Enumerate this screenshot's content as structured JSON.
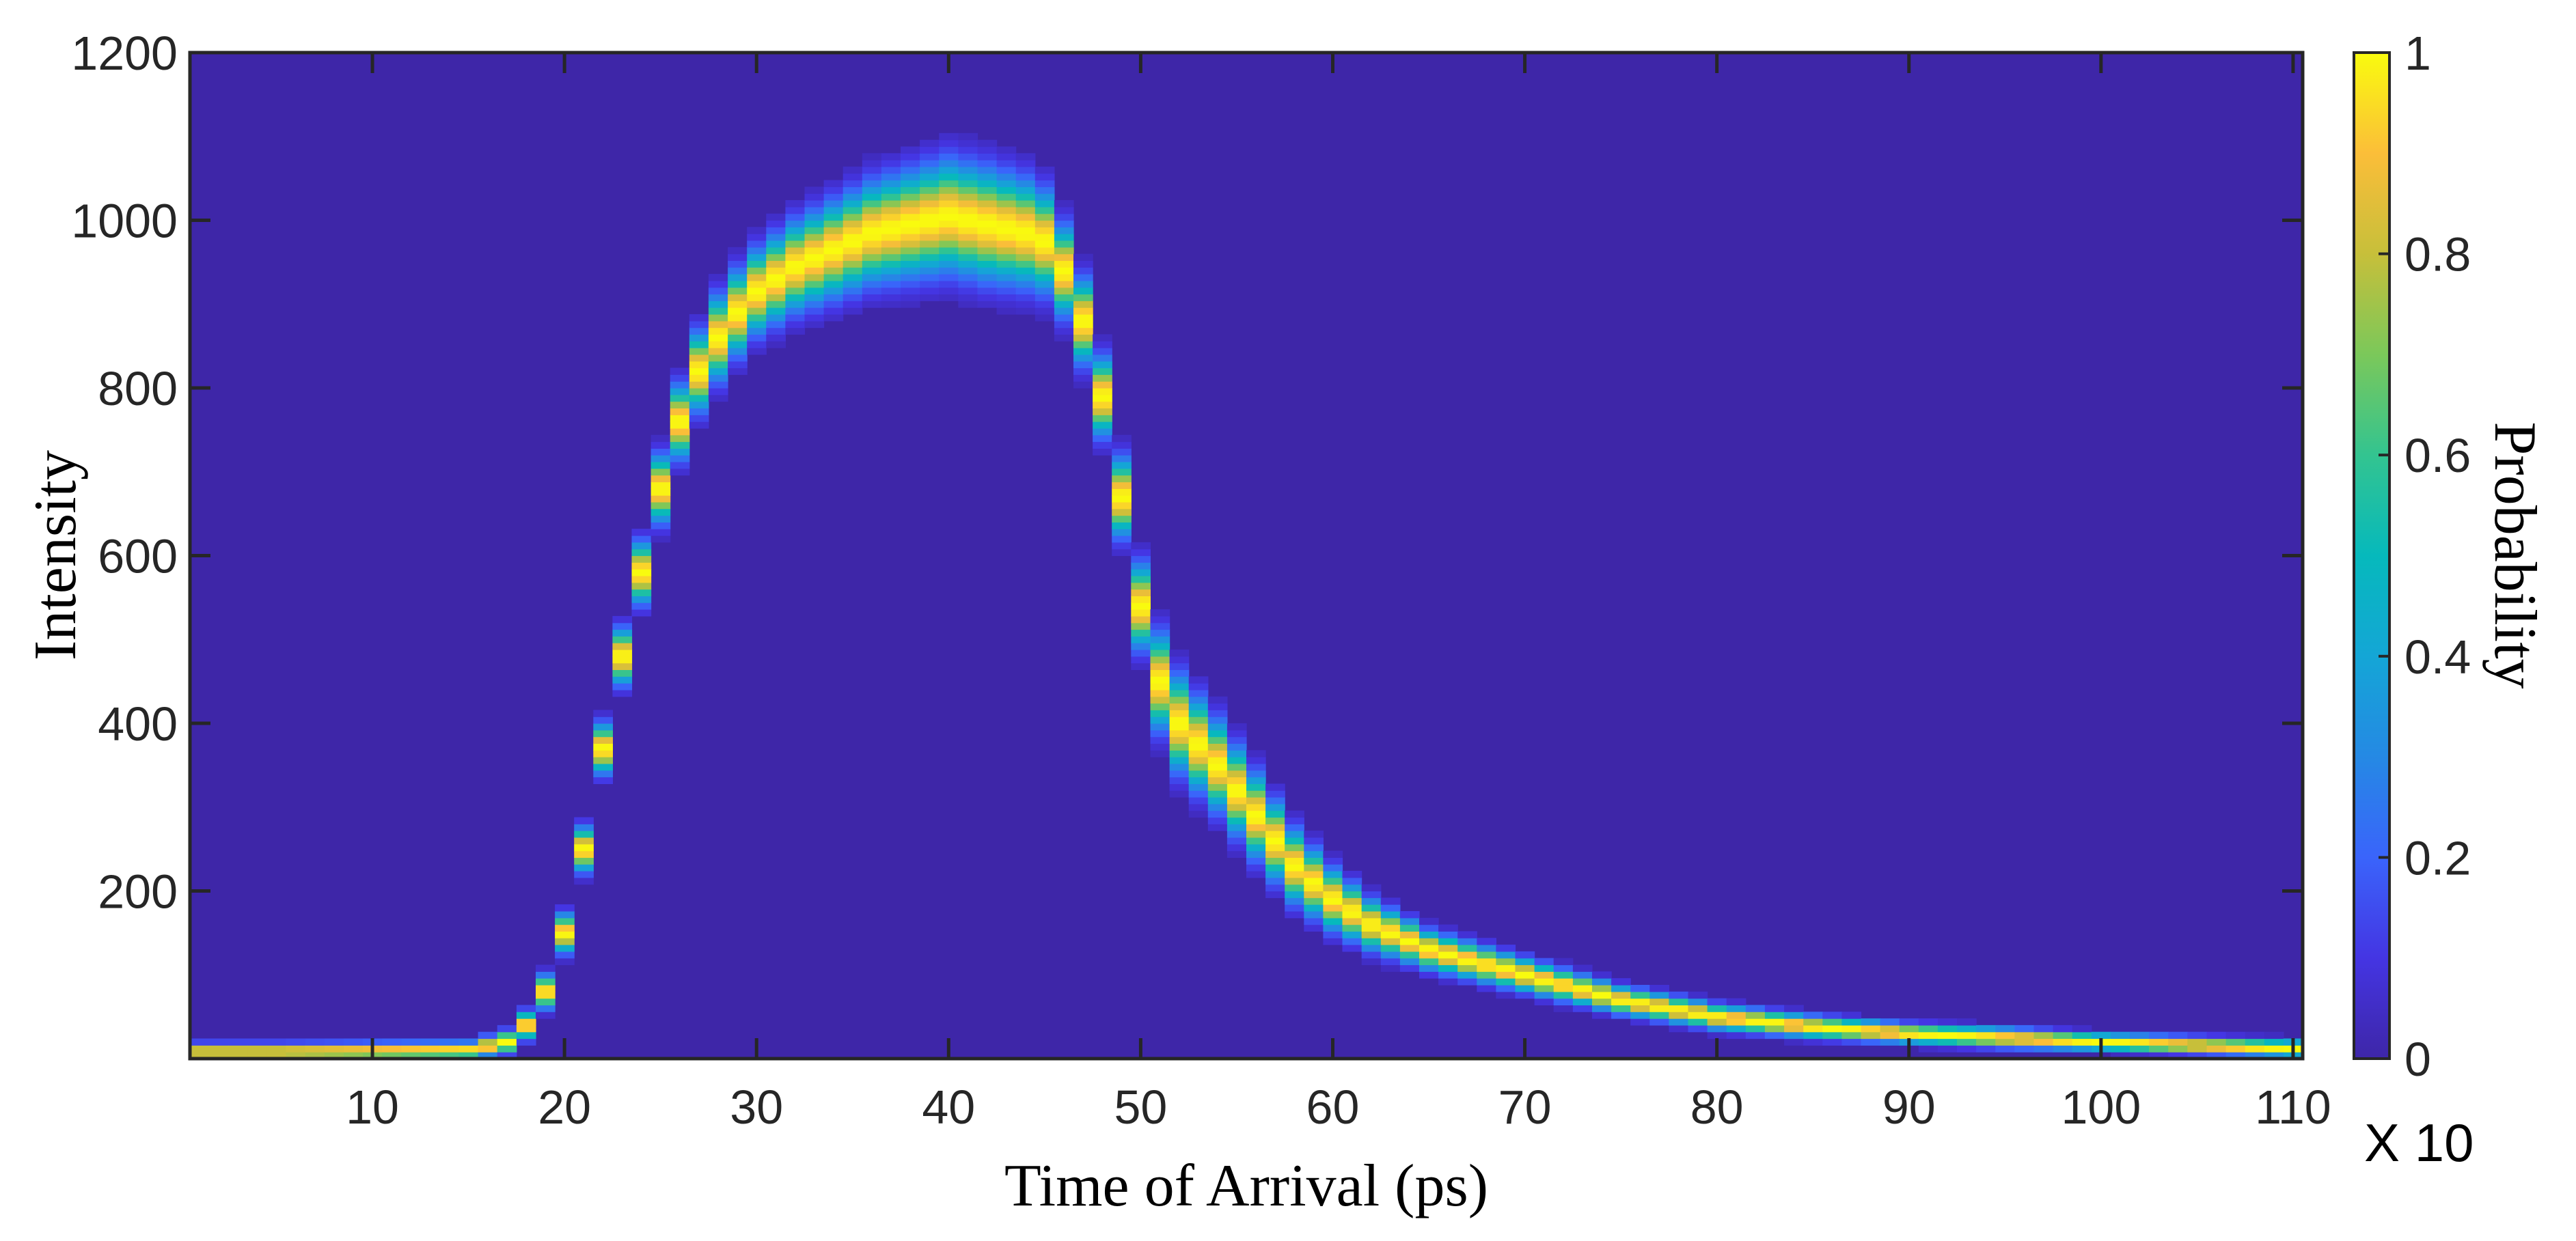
{
  "chart_data": {
    "type": "heatmap",
    "title": "",
    "xlabel": "Time of Arrival (ps)",
    "ylabel": "Intensity",
    "colorbar_label": "Probability",
    "x_multiplier_label": "X 10",
    "xlim": [
      0.5,
      110.5
    ],
    "ylim": [
      0,
      1200
    ],
    "xticks": [
      10,
      20,
      30,
      40,
      50,
      60,
      70,
      80,
      90,
      100,
      110
    ],
    "yticks": [
      200,
      400,
      600,
      800,
      1000,
      1200
    ],
    "colorbar_range": [
      0,
      1
    ],
    "colorbar_ticks": [
      0,
      0.2,
      0.4,
      0.6,
      0.8,
      1
    ],
    "colormap": "parula",
    "ridge": {
      "x": [
        1,
        5,
        10,
        15,
        17,
        18,
        19,
        20,
        21,
        22,
        23,
        24,
        25,
        26,
        27,
        28,
        29,
        30,
        32,
        34,
        36,
        38,
        40,
        42,
        44,
        45,
        46,
        47,
        48,
        49,
        50,
        51,
        52,
        54,
        56,
        58,
        60,
        62,
        65,
        70,
        75,
        80,
        85,
        90,
        95,
        100,
        105,
        110
      ],
      "intensity": [
        8,
        8,
        9,
        10,
        20,
        40,
        80,
        150,
        250,
        370,
        480,
        580,
        680,
        760,
        820,
        860,
        890,
        915,
        945,
        965,
        985,
        995,
        1005,
        995,
        985,
        975,
        940,
        880,
        790,
        670,
        540,
        450,
        400,
        350,
        290,
        230,
        190,
        160,
        130,
        100,
        70,
        50,
        38,
        30,
        25,
        20,
        16,
        12
      ]
    },
    "ridge_width": [
      6,
      6,
      6,
      6,
      8,
      10,
      12,
      14,
      16,
      18,
      20,
      22,
      24,
      26,
      28,
      30,
      30,
      30,
      32,
      34,
      36,
      38,
      40,
      40,
      38,
      36,
      32,
      30,
      28,
      28,
      30,
      34,
      34,
      32,
      30,
      26,
      22,
      18,
      14,
      12,
      10,
      9,
      8,
      7,
      7,
      6,
      6,
      6
    ],
    "grid": false,
    "legend": "none"
  },
  "colors": {
    "background": "#3e26a8",
    "peak": "#f9fb0e",
    "axis": "#262626"
  }
}
